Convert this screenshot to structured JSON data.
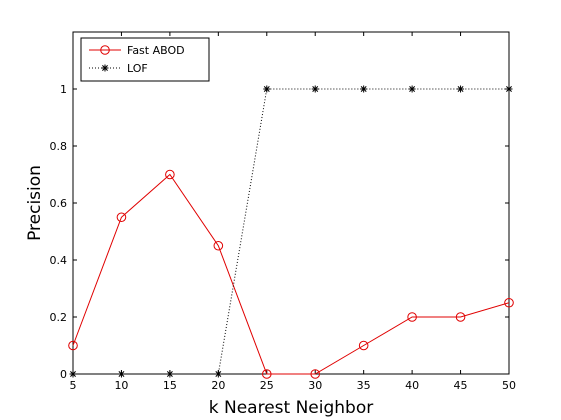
{
  "chart_data": {
    "type": "line",
    "title": "",
    "xlabel": "k Nearest Neighbor",
    "ylabel": "Precision",
    "x": [
      5,
      10,
      15,
      20,
      25,
      30,
      35,
      40,
      45,
      50
    ],
    "xlim": [
      5,
      50
    ],
    "ylim": [
      0,
      1.2
    ],
    "xticks": [
      5,
      10,
      15,
      20,
      25,
      30,
      35,
      40,
      45,
      50
    ],
    "yticks": [
      0,
      0.2,
      0.4,
      0.6,
      0.8,
      1
    ],
    "xtick_labels": [
      "5",
      "10",
      "15",
      "20",
      "25",
      "30",
      "35",
      "40",
      "45",
      "50"
    ],
    "ytick_labels": [
      "0",
      "0.2",
      "0.4",
      "0.6",
      "0.8",
      "1"
    ],
    "grid": false,
    "legend_position": "top-left",
    "series": [
      {
        "name": "Fast ABOD",
        "color": "#e00000",
        "line_style": "solid",
        "marker": "circle",
        "values": [
          0.1,
          0.55,
          0.7,
          0.45,
          0.0,
          0.0,
          0.1,
          0.2,
          0.2,
          0.25
        ]
      },
      {
        "name": "LOF",
        "color": "#000000",
        "line_style": "dotted",
        "marker": "asterisk",
        "values": [
          0,
          0,
          0,
          0,
          1,
          1,
          1,
          1,
          1,
          1
        ]
      }
    ]
  }
}
